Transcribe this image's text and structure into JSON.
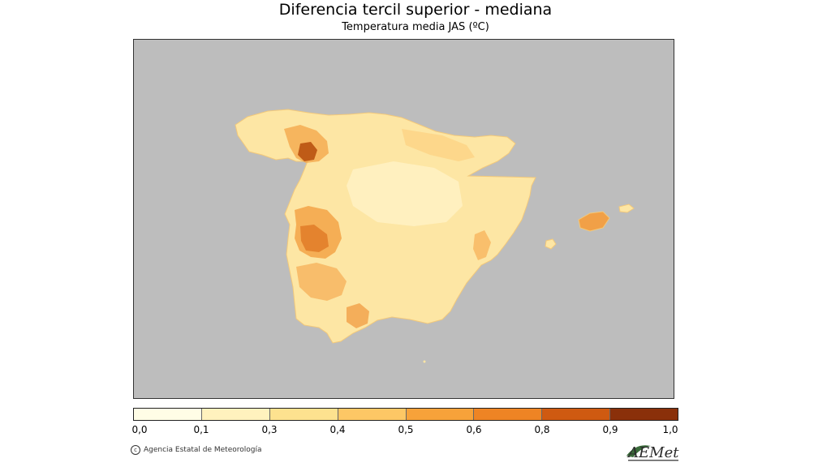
{
  "title": "Diferencia tercil superior - mediana",
  "subtitle": "Temperatura media JAS (ºC)",
  "map": {
    "background_color": "#bdbdbd",
    "region": "Spain (Iberian Peninsula) and Balearic Islands"
  },
  "colorbar": {
    "colors": [
      "#fffde6",
      "#fff2be",
      "#fde28f",
      "#fdc765",
      "#f7a23a",
      "#ee8424",
      "#cf5a11",
      "#8a300a"
    ],
    "ticks": [
      "0,0",
      "0,1",
      "0,3",
      "0,4",
      "0,5",
      "0,6",
      "0,8",
      "0,9",
      "1,0"
    ]
  },
  "footer": {
    "copyright_text": "Agencia Estatal de Meteorología",
    "logo_text": "AEMet"
  }
}
